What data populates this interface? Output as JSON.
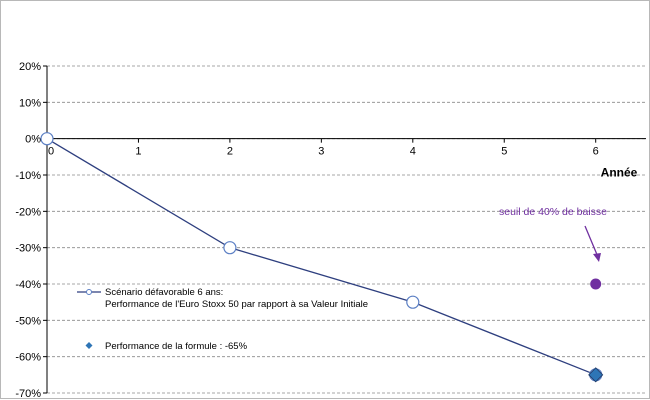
{
  "chart_data": {
    "type": "line",
    "xlabel": "Année",
    "ylabel": "",
    "xlim": [
      0,
      6.55
    ],
    "ylim": [
      -70,
      20
    ],
    "x_ticks": [
      0,
      1,
      2,
      3,
      4,
      5,
      6
    ],
    "x_tick_labels": [
      "0",
      "1",
      "2",
      "3",
      "4",
      "5",
      "6"
    ],
    "y_ticks": [
      20,
      10,
      0,
      -10,
      -20,
      -30,
      -40,
      -50,
      -60,
      -70
    ],
    "y_tick_labels": [
      "20%",
      "10%",
      "0%",
      "-10%",
      "-20%",
      "-30%",
      "-40%",
      "-50%",
      "-60%",
      "-70%"
    ],
    "grid": true,
    "series": [
      {
        "name": "Scénario défavorable 6 ans:",
        "name_line2": "Performance de l'Euro Stoxx 50 par rapport à sa Valeur Initiale",
        "x": [
          0,
          2,
          4,
          6
        ],
        "values": [
          0,
          -30,
          -45,
          -65
        ],
        "color": "#2e3f7f",
        "marker": "open-circle"
      },
      {
        "name": "Performance de la formule : -65%",
        "x": [
          6
        ],
        "values": [
          -65
        ],
        "color": "#2e75b6",
        "marker": "diamond"
      }
    ],
    "threshold_point": {
      "x": 6,
      "value": -40,
      "color": "#7030a0"
    },
    "annotation": {
      "text": "seuil de 40% de baisse",
      "color": "#7030a0"
    },
    "legend_position": "bottom-left"
  }
}
